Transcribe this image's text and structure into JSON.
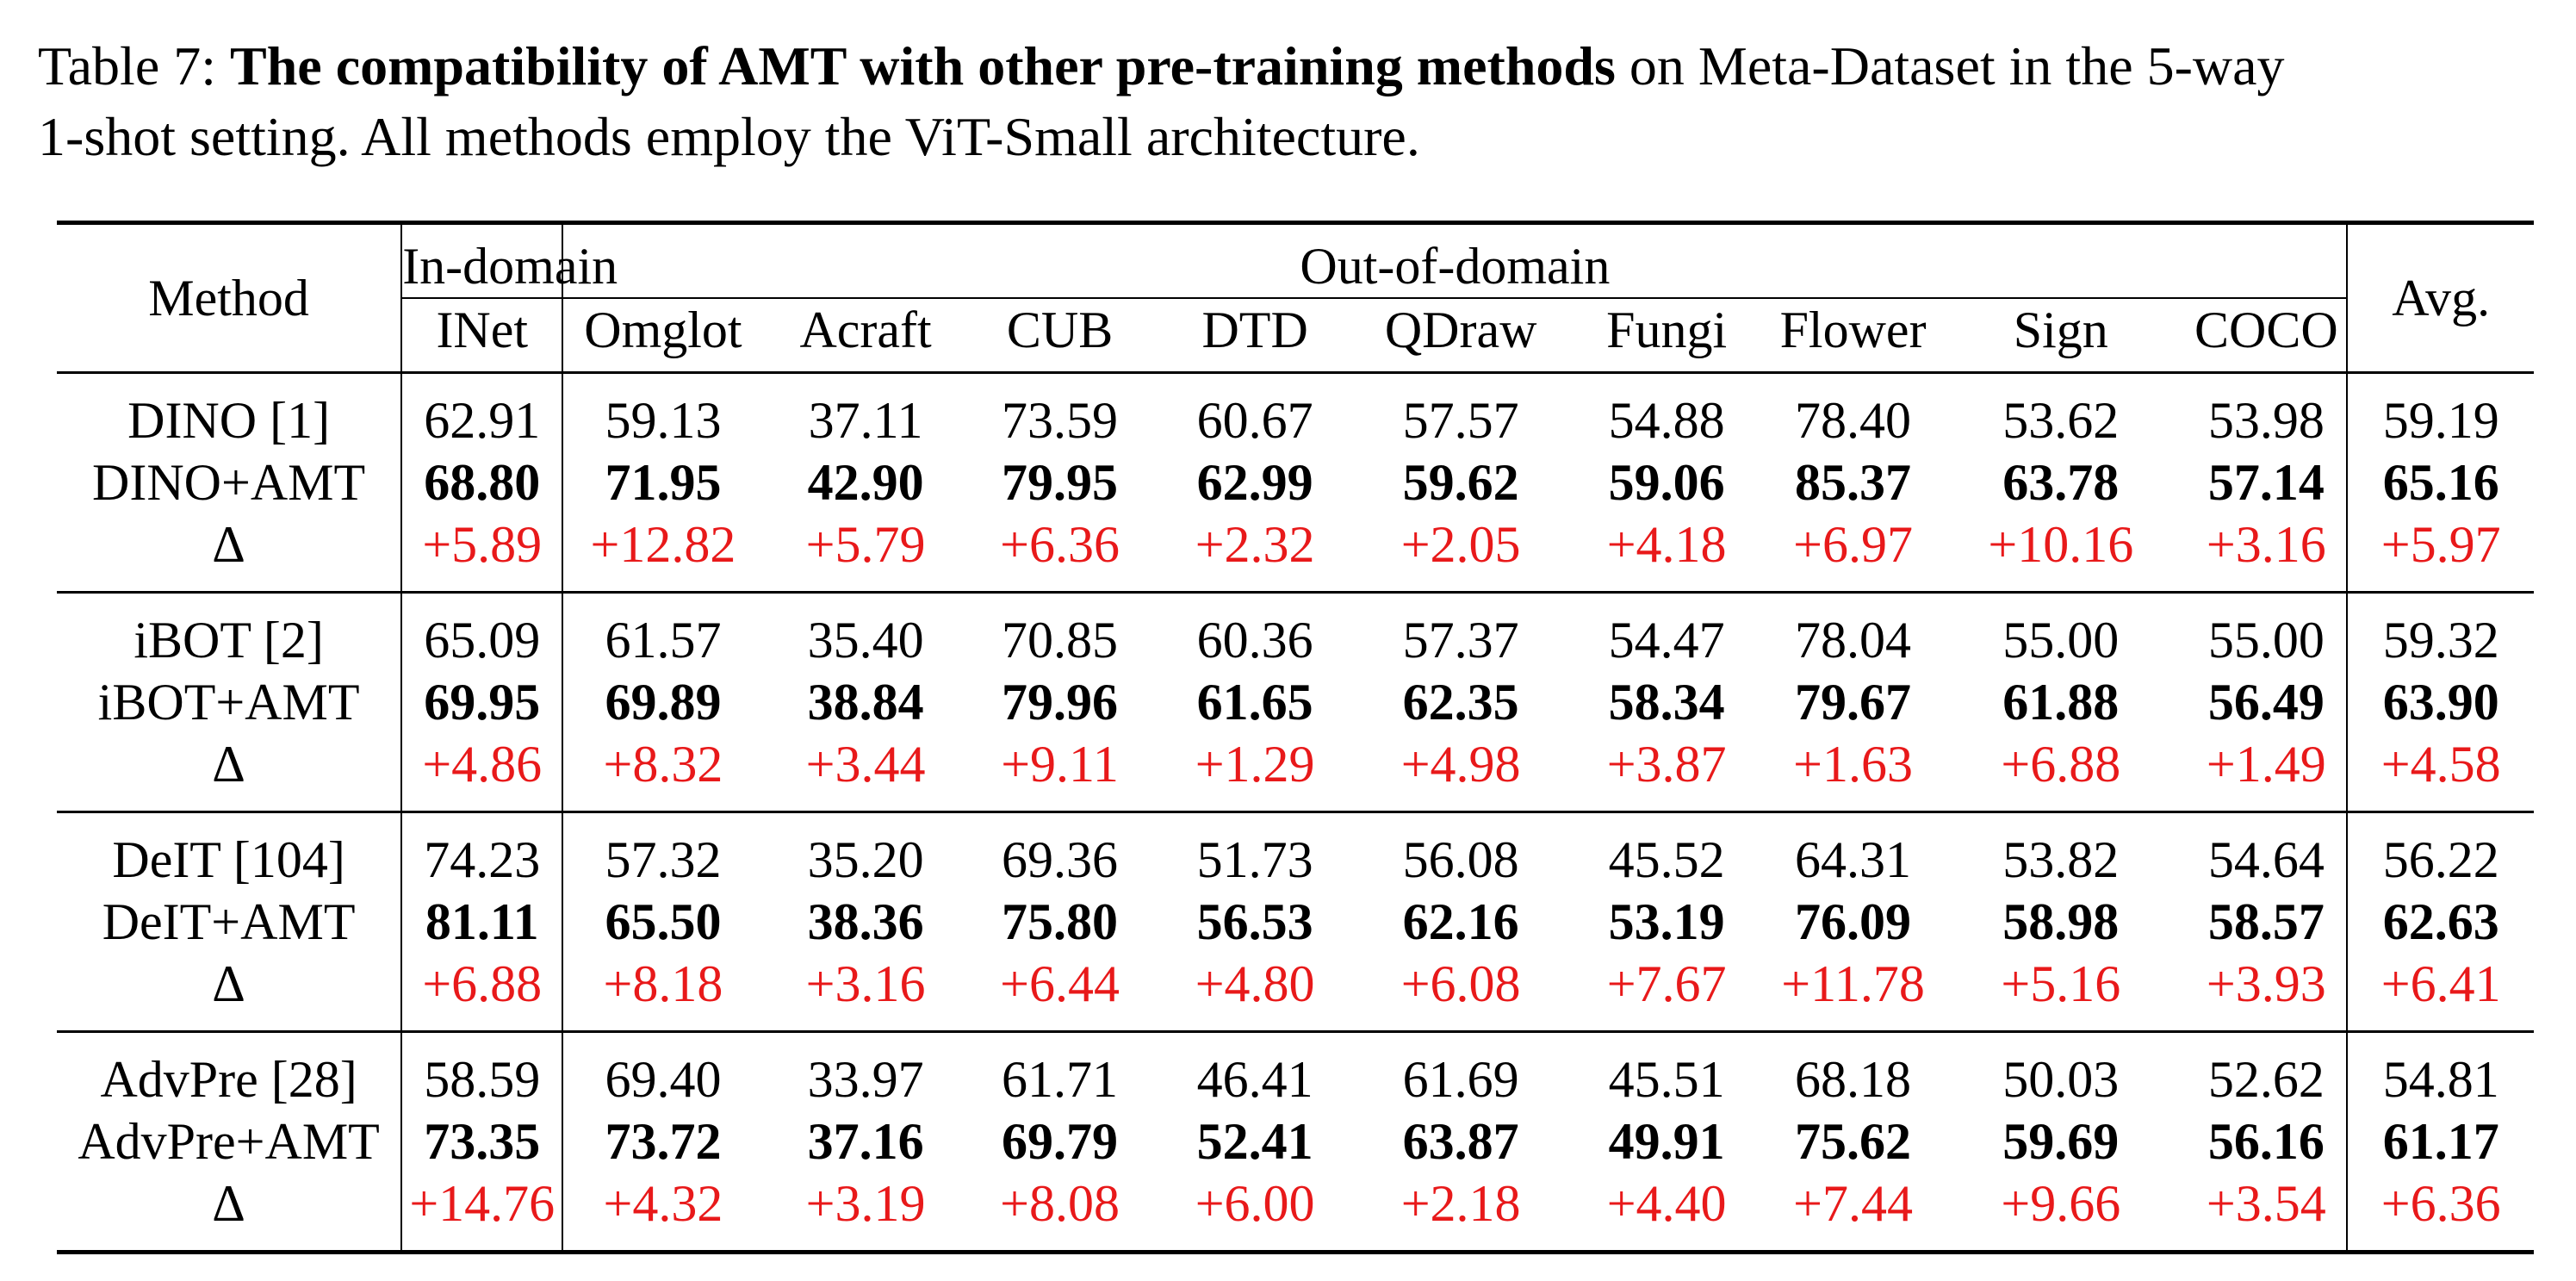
{
  "caption": {
    "label": "Table 7:",
    "bold": "The compatibility of AMT with other pre-training methods",
    "rest_line1": " on Meta-Dataset in the 5-way",
    "line2": "1-shot setting. All methods employ the ViT-Small architecture."
  },
  "header": {
    "method": "Method",
    "in_domain": "In-domain",
    "out_of_domain": "Out-of-domain",
    "avg": "Avg.",
    "columns": [
      "INet",
      "Omglot",
      "Acraft",
      "CUB",
      "DTD",
      "QDraw",
      "Fungi",
      "Flower",
      "Sign",
      "COCO"
    ]
  },
  "groups": [
    {
      "rows": [
        {
          "method": "DINO [1]",
          "values": [
            "62.91",
            "59.13",
            "37.11",
            "73.59",
            "60.67",
            "57.57",
            "54.88",
            "78.40",
            "53.62",
            "53.98",
            "59.19"
          ]
        },
        {
          "method": "DINO+AMT",
          "values": [
            "68.80",
            "71.95",
            "42.90",
            "79.95",
            "62.99",
            "59.62",
            "59.06",
            "85.37",
            "63.78",
            "57.14",
            "65.16"
          ]
        },
        {
          "method": "Δ",
          "values": [
            "+5.89",
            "+12.82",
            "+5.79",
            "+6.36",
            "+2.32",
            "+2.05",
            "+4.18",
            "+6.97",
            "+10.16",
            "+3.16",
            "+5.97"
          ]
        }
      ]
    },
    {
      "rows": [
        {
          "method": "iBOT [2]",
          "values": [
            "65.09",
            "61.57",
            "35.40",
            "70.85",
            "60.36",
            "57.37",
            "54.47",
            "78.04",
            "55.00",
            "55.00",
            "59.32"
          ]
        },
        {
          "method": "iBOT+AMT",
          "values": [
            "69.95",
            "69.89",
            "38.84",
            "79.96",
            "61.65",
            "62.35",
            "58.34",
            "79.67",
            "61.88",
            "56.49",
            "63.90"
          ]
        },
        {
          "method": "Δ",
          "values": [
            "+4.86",
            "+8.32",
            "+3.44",
            "+9.11",
            "+1.29",
            "+4.98",
            "+3.87",
            "+1.63",
            "+6.88",
            "+1.49",
            "+4.58"
          ]
        }
      ]
    },
    {
      "rows": [
        {
          "method": "DeIT [104]",
          "values": [
            "74.23",
            "57.32",
            "35.20",
            "69.36",
            "51.73",
            "56.08",
            "45.52",
            "64.31",
            "53.82",
            "54.64",
            "56.22"
          ]
        },
        {
          "method": "DeIT+AMT",
          "values": [
            "81.11",
            "65.50",
            "38.36",
            "75.80",
            "56.53",
            "62.16",
            "53.19",
            "76.09",
            "58.98",
            "58.57",
            "62.63"
          ]
        },
        {
          "method": "Δ",
          "values": [
            "+6.88",
            "+8.18",
            "+3.16",
            "+6.44",
            "+4.80",
            "+6.08",
            "+7.67",
            "+11.78",
            "+5.16",
            "+3.93",
            "+6.41"
          ]
        }
      ]
    },
    {
      "rows": [
        {
          "method": "AdvPre [28]",
          "values": [
            "58.59",
            "69.40",
            "33.97",
            "61.71",
            "46.41",
            "61.69",
            "45.51",
            "68.18",
            "50.03",
            "52.62",
            "54.81"
          ]
        },
        {
          "method": "AdvPre+AMT",
          "values": [
            "73.35",
            "73.72",
            "37.16",
            "69.79",
            "52.41",
            "63.87",
            "49.91",
            "75.62",
            "59.69",
            "56.16",
            "61.17"
          ]
        },
        {
          "method": "Δ",
          "values": [
            "+14.76",
            "+4.32",
            "+3.19",
            "+8.08",
            "+6.00",
            "+2.18",
            "+4.40",
            "+7.44",
            "+9.66",
            "+3.54",
            "+6.36"
          ]
        }
      ]
    }
  ],
  "colors": {
    "delta": "#e8191a"
  }
}
